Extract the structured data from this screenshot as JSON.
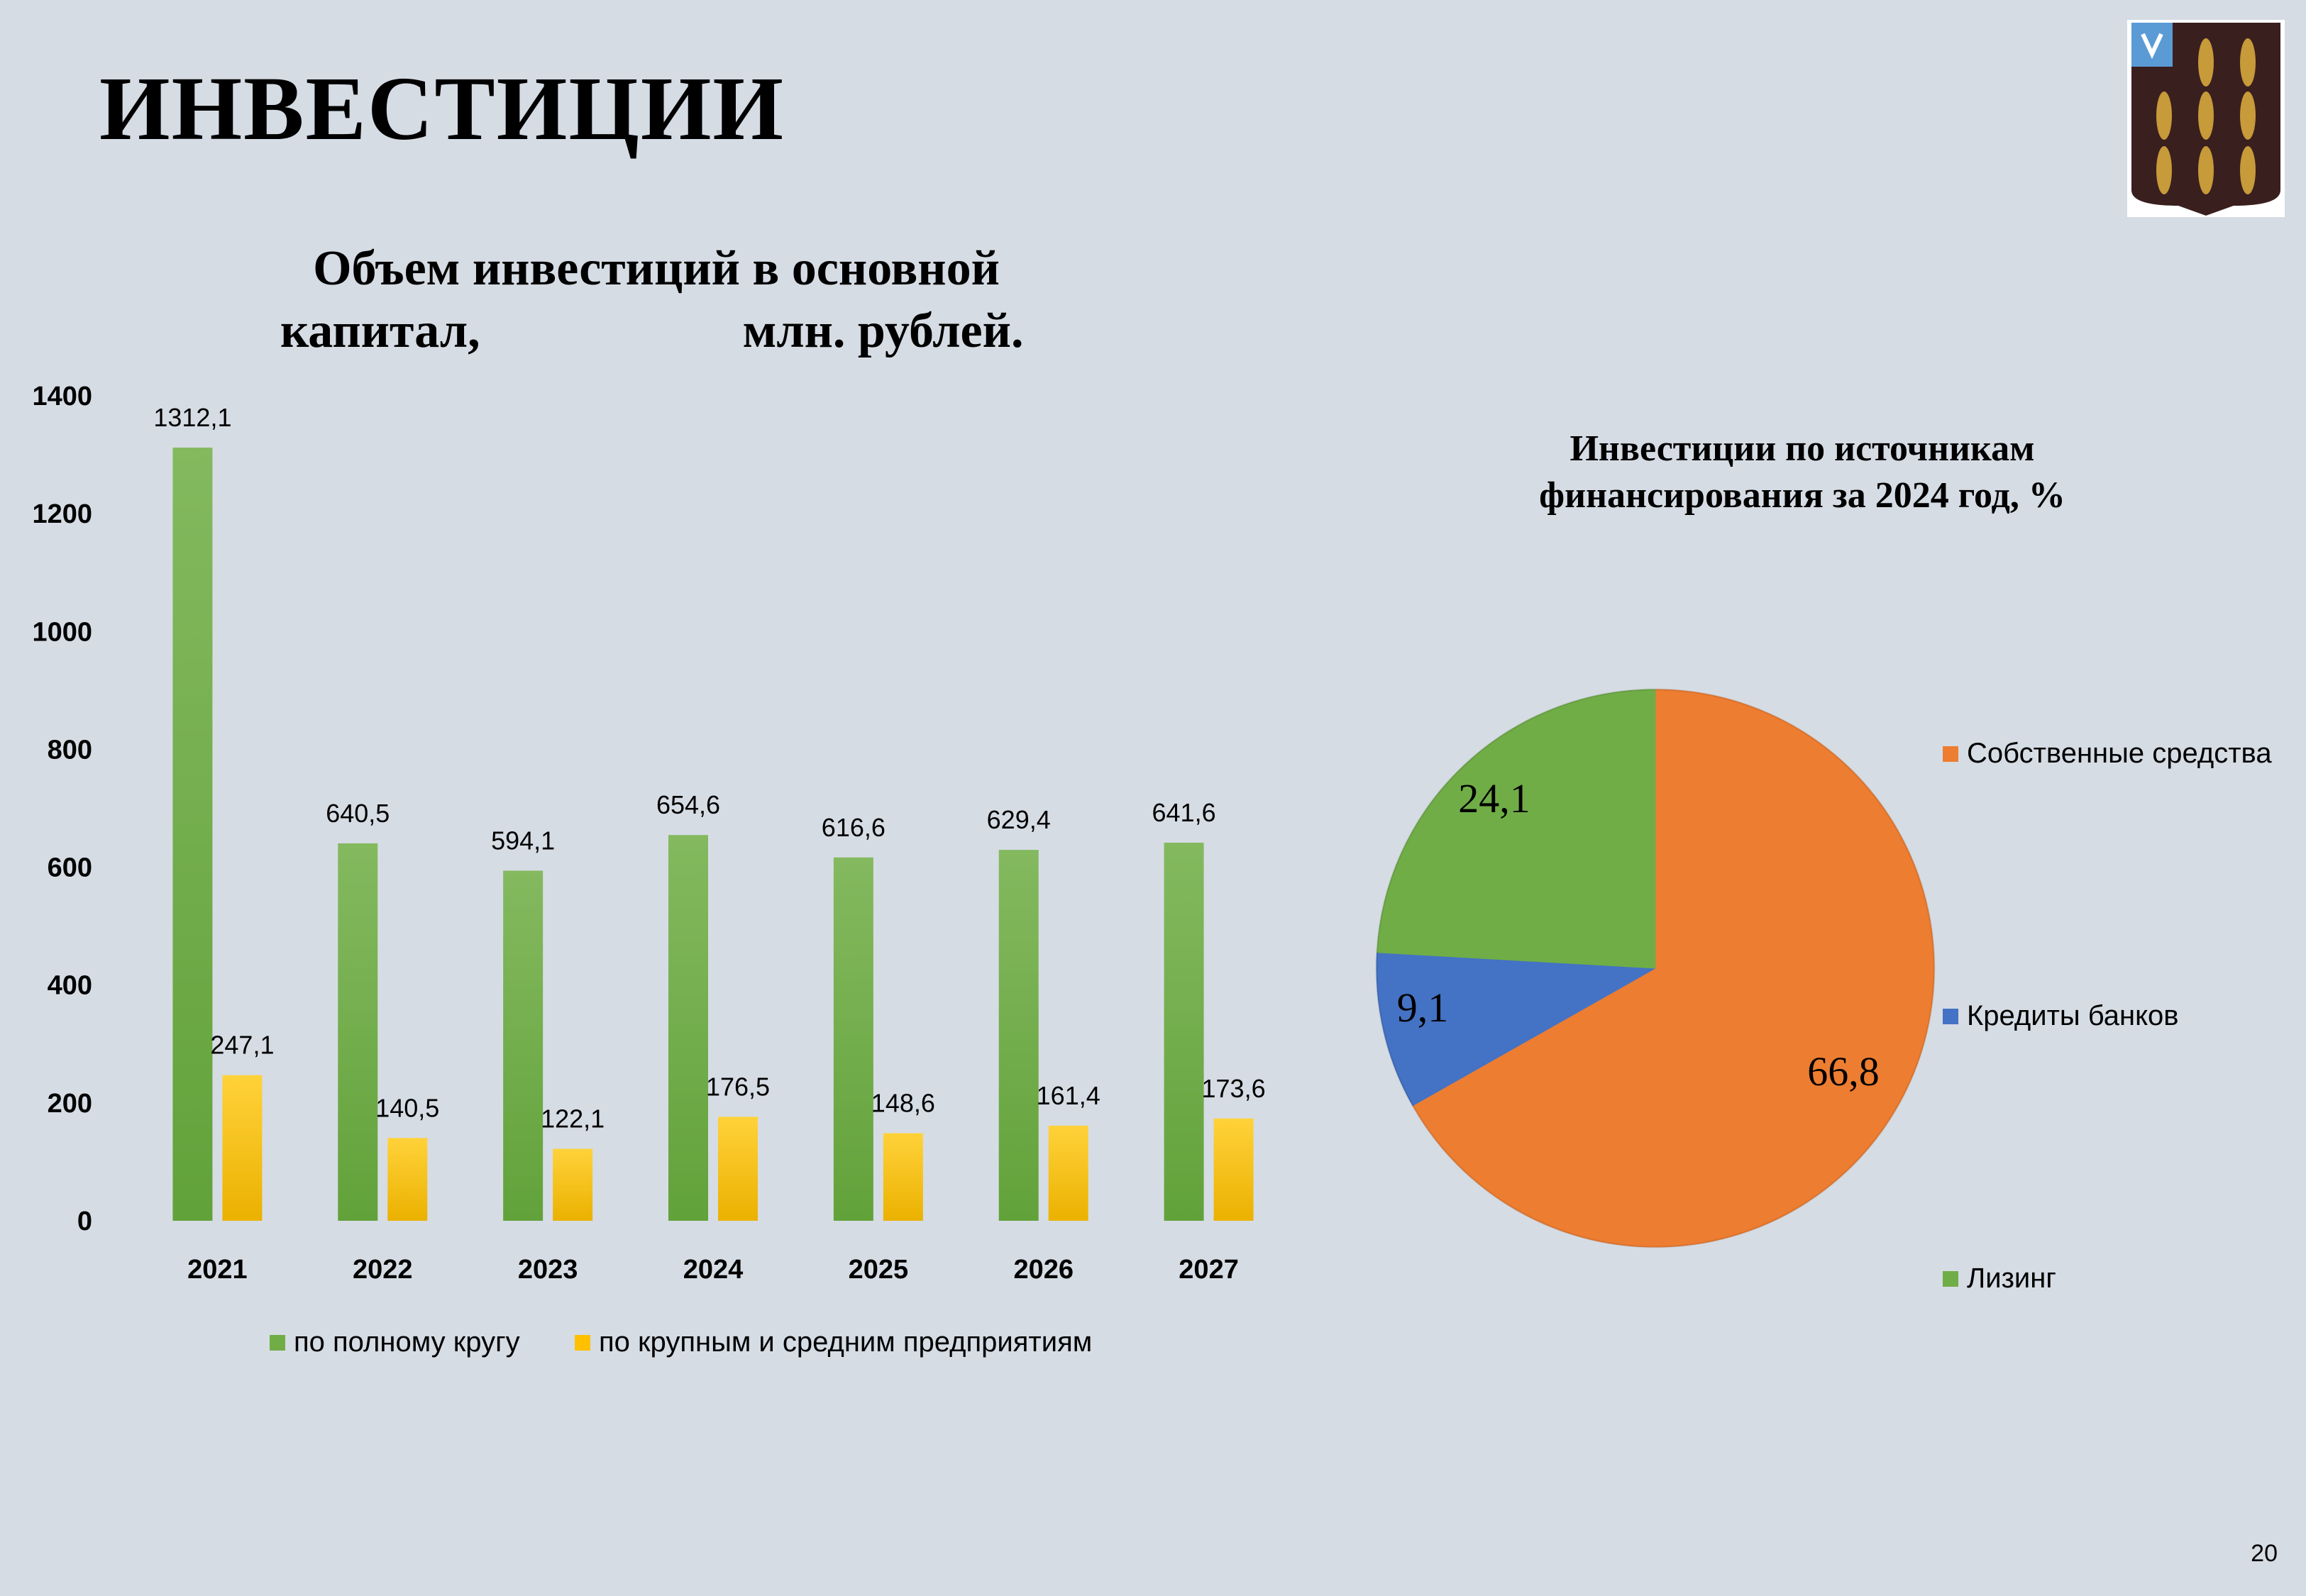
{
  "slide": {
    "title": "ИНВЕСТИЦИИ",
    "page_number": "20",
    "emblem_icon": "coat-of-arms-wheat-sheaves"
  },
  "colors": {
    "background": "#d6dce4",
    "green": "#70ad47",
    "yellow": "#ffc000",
    "orange": "#ed7d31",
    "blue": "#4472c4"
  },
  "chart_data": [
    {
      "type": "bar",
      "title_line1": "Объем инвестиций в основной",
      "title_line2a": "капитал,",
      "title_line2b": "млн. рублей.",
      "categories": [
        "2021",
        "2022",
        "2023",
        "2024",
        "2025",
        "2026",
        "2027"
      ],
      "series": [
        {
          "name": "по полному кругу",
          "color": "#70ad47",
          "values": [
            1312.1,
            640.5,
            594.1,
            654.6,
            616.6,
            629.4,
            641.6
          ],
          "labels": [
            "1312,1",
            "640,5",
            "594,1",
            "654,6",
            "616,6",
            "629,4",
            "641,6"
          ]
        },
        {
          "name": "по крупным и средним предприятиям",
          "color": "#ffc000",
          "values": [
            247.1,
            140.5,
            122.1,
            176.5,
            148.6,
            161.4,
            173.6
          ],
          "labels": [
            "247,1",
            "140,5",
            "122,1",
            "176,5",
            "148,6",
            "161,4",
            "173,6"
          ]
        }
      ],
      "ylim": [
        0,
        1400
      ],
      "yticks": [
        "0",
        "200",
        "400",
        "600",
        "800",
        "1000",
        "1200",
        "1400"
      ],
      "legend_position": "bottom",
      "grid": false
    },
    {
      "type": "pie",
      "title_line1": "Инвестиции по источникам",
      "title_line2": "финансирования за 2024 год, %",
      "slices": [
        {
          "name": "Собственные средства",
          "value": 66.8,
          "label": "66,8",
          "color": "#ed7d31"
        },
        {
          "name": "Кредиты банков",
          "value": 9.1,
          "label": "9,1",
          "color": "#4472c4"
        },
        {
          "name": "Лизинг",
          "value": 24.1,
          "label": "24,1",
          "color": "#70ad47"
        }
      ],
      "legend_position": "right"
    }
  ]
}
